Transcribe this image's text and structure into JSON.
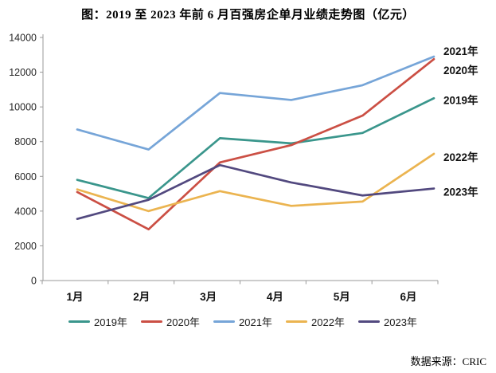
{
  "title": "图：2019 至 2023 年前 6 月百强房企单月业绩走势图（亿元）",
  "source": "数据来源：CRIC",
  "chart_data": {
    "type": "line",
    "title": "图：2019 至 2023 年前 6 月百强房企单月业绩走势图（亿元）",
    "unit": "亿元",
    "categories": [
      "1月",
      "2月",
      "3月",
      "4月",
      "5月",
      "6月"
    ],
    "series": [
      {
        "name": "2019年",
        "color": "#3A968C",
        "values": [
          5800,
          4750,
          8200,
          7900,
          8500,
          10500
        ]
      },
      {
        "name": "2020年",
        "color": "#CB4F44",
        "values": [
          5100,
          2950,
          6800,
          7800,
          9500,
          12750
        ]
      },
      {
        "name": "2021年",
        "color": "#76A5D8",
        "values": [
          8700,
          7550,
          10800,
          10400,
          11250,
          12900
        ]
      },
      {
        "name": "2022年",
        "color": "#EBB450",
        "values": [
          5250,
          4000,
          5150,
          4300,
          4550,
          7300
        ]
      },
      {
        "name": "2023年",
        "color": "#52497F",
        "values": [
          3550,
          4650,
          6650,
          5650,
          4900,
          5300
        ]
      }
    ],
    "ylim": [
      0,
      14000
    ],
    "yticks": [
      0,
      2000,
      4000,
      6000,
      8000,
      10000,
      12000,
      14000
    ],
    "grid": false,
    "legend_position": "bottom",
    "end_labels_top_to_bottom": [
      "2021年",
      "2020年",
      "2019年",
      "2022年",
      "2023年"
    ]
  }
}
